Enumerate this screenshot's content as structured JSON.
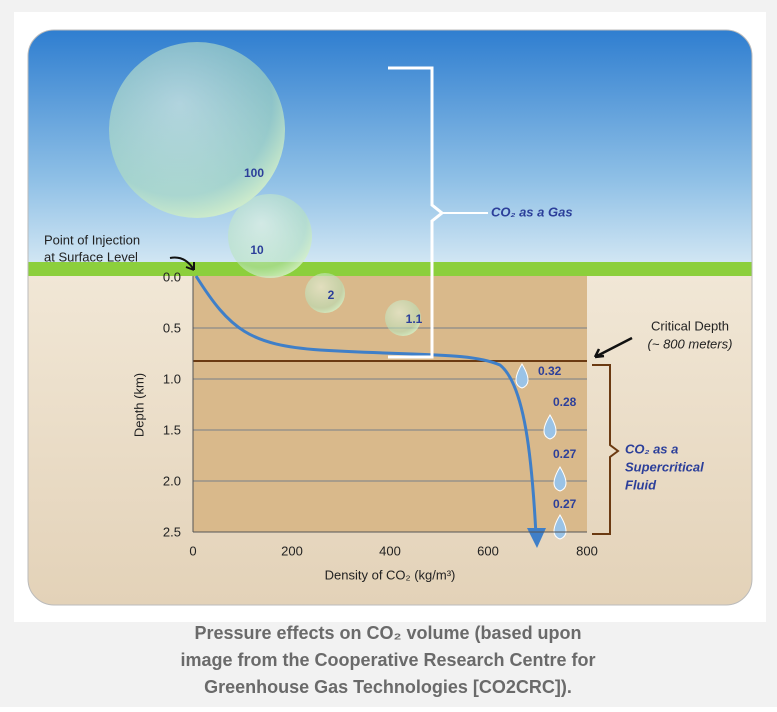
{
  "figure": {
    "bubble_labels": [
      "100",
      "10",
      "2",
      "1.1"
    ],
    "droplet_labels": [
      "0.32",
      "0.28",
      "0.27",
      "0.27"
    ],
    "injection_label": [
      "Point of Injection",
      "at Surface Level"
    ],
    "gas_label": "CO₂ as a Gas",
    "critical_label": [
      "Critical Depth",
      "(~ 800 meters)"
    ],
    "fluid_label": [
      "CO₂ as a",
      "Supercritical",
      "Fluid"
    ],
    "y_axis": {
      "label": "Depth (km)",
      "ticks": [
        "0.0",
        "0.5",
        "1.0",
        "1.5",
        "2.0",
        "2.5"
      ]
    },
    "x_axis": {
      "label": "Density of CO₂ (kg/m³)",
      "ticks": [
        "0",
        "200",
        "400",
        "600",
        "800"
      ]
    }
  },
  "caption": [
    "Pressure effects on CO₂ volume (based upon",
    "image from the Cooperative Research Centre for",
    "Greenhouse Gas Technologies [CO2CRC])."
  ]
}
